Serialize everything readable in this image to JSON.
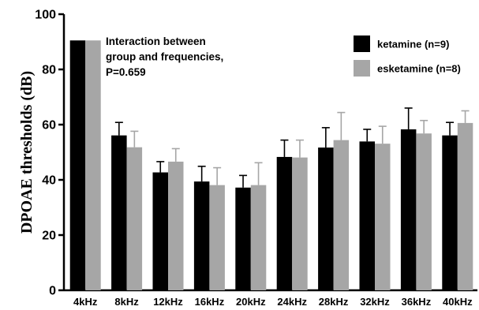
{
  "chart_data": {
    "type": "bar",
    "title": "",
    "xlabel": "",
    "ylabel": "DPOAE thresholds (dB)",
    "ylim": [
      0,
      100
    ],
    "yticks": [
      0,
      20,
      40,
      60,
      80,
      100
    ],
    "grid": false,
    "legend_position": "top-right",
    "categories": [
      "4kHz",
      "8kHz",
      "12kHz",
      "16kHz",
      "20kHz",
      "24kHz",
      "28kHz",
      "32kHz",
      "36kHz",
      "40kHz"
    ],
    "series": [
      {
        "name": "ketamine (n=9)",
        "color": "#000000",
        "values": [
          90.5,
          56.1,
          42.7,
          39.4,
          37.2,
          48.3,
          51.7,
          53.9,
          58.3,
          56.1
        ],
        "errors": [
          0,
          4.7,
          3.9,
          5.5,
          4.4,
          6.1,
          7.2,
          4.4,
          7.7,
          4.7
        ]
      },
      {
        "name": "esketamine (n=8)",
        "color": "#a6a6a6",
        "values": [
          90.5,
          51.8,
          46.6,
          38.1,
          38.1,
          48.1,
          54.4,
          53.1,
          56.8,
          60.6
        ],
        "errors": [
          0,
          5.8,
          4.7,
          6.3,
          8.1,
          6.3,
          10.0,
          6.3,
          4.7,
          4.4
        ]
      }
    ],
    "annotation": [
      "Interaction between",
      "group and frequencies,",
      "P=0.659"
    ]
  }
}
